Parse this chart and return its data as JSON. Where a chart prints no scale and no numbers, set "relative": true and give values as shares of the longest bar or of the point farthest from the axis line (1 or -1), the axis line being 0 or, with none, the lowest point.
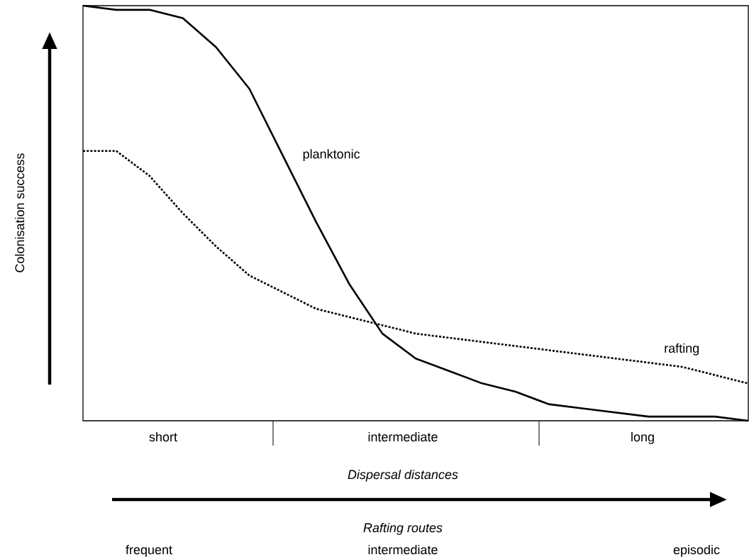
{
  "chart_data": {
    "type": "line",
    "relative": true,
    "xlabel": "Dispersal distances",
    "ylabel": "Colonisation success",
    "categories": [
      null,
      null,
      null,
      null,
      null,
      null,
      null,
      null,
      null,
      null,
      null,
      null,
      null,
      null,
      null,
      null,
      null,
      null,
      null,
      null,
      null
    ],
    "series": [
      {
        "name": "planktonic",
        "color": "#000000",
        "line_style": "solid",
        "values": [
          1,
          0.99,
          0.99,
          0.97,
          0.9,
          0.8,
          0.64,
          0.48,
          0.33,
          0.21,
          0.15,
          0.12,
          0.09,
          0.07,
          0.04,
          0.03,
          0.02,
          0.01,
          0.01,
          0.01,
          0
        ]
      },
      {
        "name": "rafting",
        "color": "#000000",
        "line_style": "dotted",
        "values": [
          0.65,
          0.65,
          0.59,
          0.5,
          0.42,
          0.35,
          0.31,
          0.27,
          0.25,
          0.23,
          0.21,
          0.2,
          0.19,
          0.18,
          0.17,
          0.16,
          0.15,
          0.14,
          0.13,
          0.11,
          0.09
        ]
      }
    ],
    "annotations": [
      "short",
      "intermediate",
      "long",
      "Rafting routes",
      "frequent",
      "intermediate",
      "episodic"
    ]
  }
}
